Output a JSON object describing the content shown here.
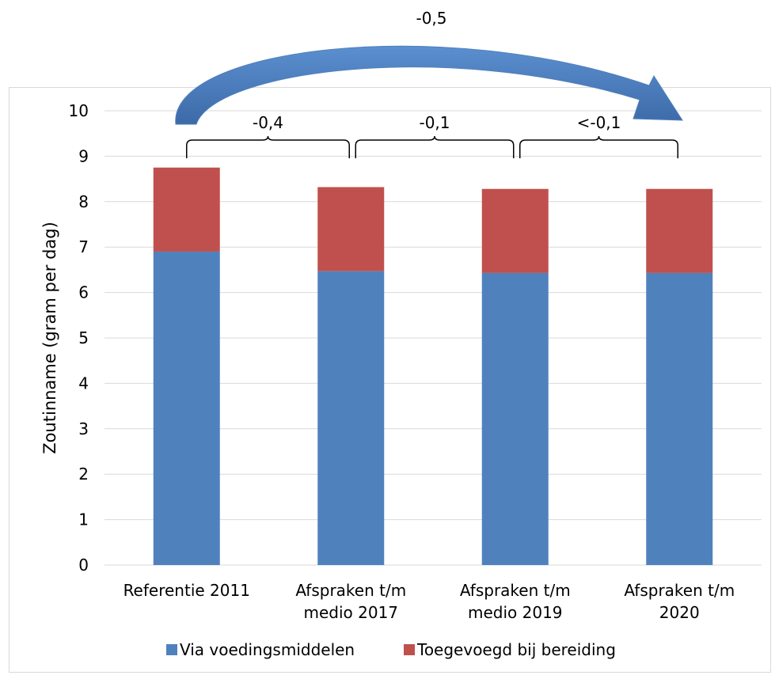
{
  "chart_data": {
    "type": "bar",
    "stacked": true,
    "categories": [
      [
        "Referentie 2011"
      ],
      [
        "Afspraken t/m",
        "medio 2017"
      ],
      [
        "Afspraken t/m",
        "medio 2019"
      ],
      [
        "Afspraken t/m",
        "2020"
      ]
    ],
    "series": [
      {
        "name": "Via voedingsmiddelen",
        "color": "#4F81BD",
        "values": [
          6.9,
          6.47,
          6.43,
          6.43
        ]
      },
      {
        "name": "Toegevoegd bij bereiding",
        "color": "#C0504D",
        "values": [
          1.85,
          1.85,
          1.85,
          1.85
        ]
      }
    ],
    "ylabel": "Zoutinname (gram per dag)",
    "xlabel": "",
    "ylim": [
      0,
      10
    ],
    "yticks": [
      0,
      1,
      2,
      3,
      4,
      5,
      6,
      7,
      8,
      9,
      10
    ],
    "grid": true,
    "legend_position": "bottom",
    "annotations": {
      "total_change": "-0,5",
      "brackets": [
        "-0,4",
        "-0,1",
        "<-0,1"
      ],
      "arrow_color": "#4F81BD"
    }
  }
}
